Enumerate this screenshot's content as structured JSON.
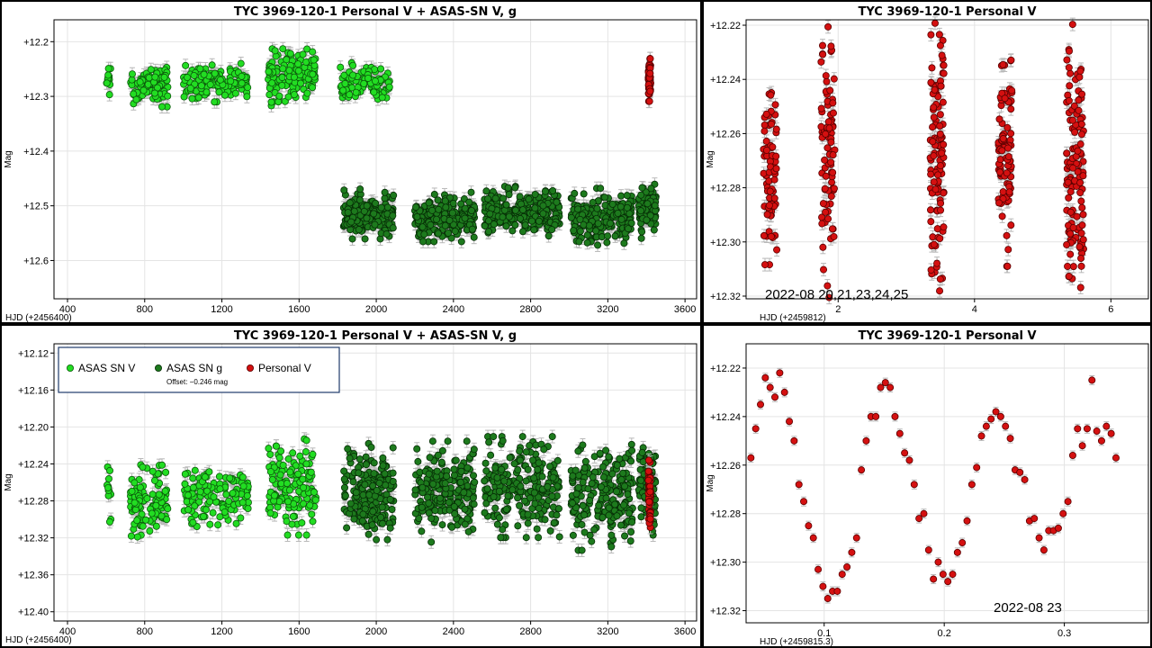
{
  "colors": {
    "asas_v": "#22dd22",
    "asas_g": "#1d7a1d",
    "personal": "#d41010",
    "grid": "#e4e4e4",
    "errbar": "#b8b8b8"
  },
  "chart_data": [
    {
      "id": "p1",
      "type": "scatter",
      "title": "TYC 3969-120-1 Personal  V + ASAS-SN V, g",
      "xlabel": "HJD (+2456400)",
      "ylabel": "Mag",
      "xlim": [
        330,
        3660
      ],
      "ylim": [
        12.67,
        12.16
      ],
      "y_inverted": true,
      "xticks": [
        400,
        800,
        1200,
        1600,
        2000,
        2400,
        2800,
        3200,
        3600
      ],
      "yticks": [
        12.2,
        12.3,
        12.4,
        12.5,
        12.6
      ],
      "ytick_labels": [
        "+12.2",
        "+12.3",
        "+12.4",
        "+12.5",
        "+12.6"
      ],
      "grid": true,
      "series": [
        {
          "key": "asas_v",
          "clusters": [
            [
              600,
              625,
              12.27,
              0.035,
              12
            ],
            [
              725,
              920,
              12.28,
              0.03,
              110
            ],
            [
              1000,
              1340,
              12.275,
              0.027,
              130
            ],
            [
              1440,
              1690,
              12.265,
              0.04,
              140
            ],
            [
              1810,
              2070,
              12.275,
              0.028,
              95
            ]
          ]
        },
        {
          "key": "asas_g",
          "clusters": [
            [
              1830,
              2090,
              12.515,
              0.035,
              190
            ],
            [
              2200,
              2510,
              12.52,
              0.035,
              200
            ],
            [
              2560,
              2950,
              12.51,
              0.035,
              230
            ],
            [
              3010,
              3330,
              12.52,
              0.04,
              200
            ],
            [
              3360,
              3450,
              12.51,
              0.038,
              80
            ]
          ]
        },
        {
          "key": "personal",
          "clusters": [
            [
              3410,
              3422,
              12.27,
              0.03,
              60
            ]
          ]
        }
      ]
    },
    {
      "id": "p2",
      "type": "scatter",
      "title": "TYC 3969-120-1 Personal  V",
      "xlabel": "HJD (+2459812)",
      "ylabel": "Mag",
      "xlim": [
        0.65,
        6.55
      ],
      "ylim": [
        12.321,
        12.218
      ],
      "y_inverted": true,
      "xticks": [
        2,
        4,
        6
      ],
      "yticks": [
        12.22,
        12.24,
        12.26,
        12.28,
        12.3,
        12.32
      ],
      "ytick_labels": [
        "+12.22",
        "+12.24",
        "+12.26",
        "+12.28",
        "+12.30",
        "+12.32"
      ],
      "grid": true,
      "annotation": "2022-08 20,21,23,24,25",
      "series": [
        {
          "key": "personal",
          "clusters": [
            [
              0.9,
              1.1,
              12.272,
              0.028,
              75
            ],
            [
              1.75,
              1.95,
              12.265,
              0.045,
              90
            ],
            [
              3.35,
              3.55,
              12.27,
              0.045,
              110
            ],
            [
              4.35,
              4.55,
              12.27,
              0.03,
              90
            ],
            [
              5.35,
              5.6,
              12.275,
              0.045,
              130
            ]
          ]
        }
      ]
    },
    {
      "id": "p3",
      "type": "scatter",
      "title": "TYC 3969-120-1 Personal  V + ASAS-SN V, g",
      "xlabel": "HJD (+2456400)",
      "ylabel": "Mag",
      "xlim": [
        330,
        3660
      ],
      "ylim": [
        12.41,
        12.11
      ],
      "y_inverted": true,
      "xticks": [
        400,
        800,
        1200,
        1600,
        2000,
        2400,
        2800,
        3200,
        3600
      ],
      "yticks": [
        12.12,
        12.16,
        12.2,
        12.24,
        12.28,
        12.32,
        12.36,
        12.4
      ],
      "ytick_labels": [
        "+12.12",
        "+12.16",
        "+12.20",
        "+12.24",
        "+12.28",
        "+12.32",
        "+12.36",
        "+12.40"
      ],
      "grid": true,
      "legend": {
        "position": "top-left",
        "items": [
          {
            "key": "asas_v",
            "label": "ASAS SN V"
          },
          {
            "key": "asas_g",
            "label": "ASAS SN g"
          },
          {
            "key": "personal",
            "label": "Personal V"
          }
        ],
        "note": "Offset: −0.246 mag"
      },
      "series": [
        {
          "key": "asas_v",
          "clusters": [
            [
              600,
              625,
              12.27,
              0.035,
              12
            ],
            [
              725,
              920,
              12.28,
              0.03,
              110
            ],
            [
              1000,
              1340,
              12.275,
              0.027,
              130
            ],
            [
              1440,
              1690,
              12.265,
              0.04,
              140
            ]
          ]
        },
        {
          "key": "asas_g",
          "clusters": [
            [
              1830,
              2090,
              12.27,
              0.04,
              190
            ],
            [
              2200,
              2510,
              12.27,
              0.042,
              200
            ],
            [
              2560,
              2950,
              12.265,
              0.042,
              230
            ],
            [
              3010,
              3330,
              12.275,
              0.045,
              200
            ],
            [
              3360,
              3450,
              12.265,
              0.04,
              80
            ]
          ]
        },
        {
          "key": "personal",
          "clusters": [
            [
              3410,
              3422,
              12.275,
              0.03,
              60
            ]
          ]
        }
      ]
    },
    {
      "id": "p4",
      "type": "scatter",
      "title": "TYC 3969-120-1 Personal  V",
      "xlabel": "HJD (+2459815.3)",
      "ylabel": "Mag",
      "xlim": [
        0.035,
        0.37
      ],
      "ylim": [
        12.325,
        12.21
      ],
      "y_inverted": true,
      "xticks": [
        0.1,
        0.2,
        0.3
      ],
      "yticks": [
        12.22,
        12.24,
        12.26,
        12.28,
        12.3,
        12.32
      ],
      "ytick_labels": [
        "+12.22",
        "+12.24",
        "+12.26",
        "+12.28",
        "+12.30",
        "+12.32"
      ],
      "grid": true,
      "annotation": "2022-08 23",
      "series": [
        {
          "key": "personal",
          "points": [
            [
              0.039,
              12.257
            ],
            [
              0.043,
              12.245
            ],
            [
              0.047,
              12.235
            ],
            [
              0.051,
              12.224
            ],
            [
              0.055,
              12.228
            ],
            [
              0.059,
              12.232
            ],
            [
              0.063,
              12.222
            ],
            [
              0.067,
              12.23
            ],
            [
              0.071,
              12.242
            ],
            [
              0.075,
              12.25
            ],
            [
              0.079,
              12.268
            ],
            [
              0.083,
              12.275
            ],
            [
              0.087,
              12.285
            ],
            [
              0.091,
              12.29
            ],
            [
              0.095,
              12.303
            ],
            [
              0.099,
              12.31
            ],
            [
              0.103,
              12.315
            ],
            [
              0.107,
              12.312
            ],
            [
              0.111,
              12.312
            ],
            [
              0.115,
              12.305
            ],
            [
              0.119,
              12.302
            ],
            [
              0.123,
              12.296
            ],
            [
              0.127,
              12.29
            ],
            [
              0.131,
              12.262
            ],
            [
              0.135,
              12.25
            ],
            [
              0.139,
              12.24
            ],
            [
              0.143,
              12.24
            ],
            [
              0.147,
              12.228
            ],
            [
              0.151,
              12.226
            ],
            [
              0.155,
              12.228
            ],
            [
              0.159,
              12.24
            ],
            [
              0.163,
              12.247
            ],
            [
              0.167,
              12.255
            ],
            [
              0.171,
              12.258
            ],
            [
              0.175,
              12.268
            ],
            [
              0.179,
              12.282
            ],
            [
              0.183,
              12.28
            ],
            [
              0.187,
              12.295
            ],
            [
              0.191,
              12.307
            ],
            [
              0.195,
              12.3
            ],
            [
              0.199,
              12.305
            ],
            [
              0.203,
              12.308
            ],
            [
              0.207,
              12.305
            ],
            [
              0.211,
              12.296
            ],
            [
              0.215,
              12.292
            ],
            [
              0.219,
              12.283
            ],
            [
              0.223,
              12.268
            ],
            [
              0.227,
              12.261
            ],
            [
              0.231,
              12.248
            ],
            [
              0.235,
              12.244
            ],
            [
              0.239,
              12.241
            ],
            [
              0.243,
              12.238
            ],
            [
              0.247,
              12.24
            ],
            [
              0.251,
              12.244
            ],
            [
              0.255,
              12.249
            ],
            [
              0.259,
              12.262
            ],
            [
              0.263,
              12.263
            ],
            [
              0.267,
              12.266
            ],
            [
              0.271,
              12.283
            ],
            [
              0.275,
              12.282
            ],
            [
              0.279,
              12.29
            ],
            [
              0.283,
              12.295
            ],
            [
              0.287,
              12.287
            ],
            [
              0.291,
              12.287
            ],
            [
              0.295,
              12.286
            ],
            [
              0.299,
              12.28
            ],
            [
              0.303,
              12.275
            ],
            [
              0.307,
              12.256
            ],
            [
              0.311,
              12.245
            ],
            [
              0.315,
              12.252
            ],
            [
              0.319,
              12.245
            ],
            [
              0.323,
              12.225
            ],
            [
              0.327,
              12.246
            ],
            [
              0.331,
              12.25
            ],
            [
              0.335,
              12.244
            ],
            [
              0.339,
              12.247
            ],
            [
              0.343,
              12.257
            ]
          ]
        }
      ]
    }
  ]
}
